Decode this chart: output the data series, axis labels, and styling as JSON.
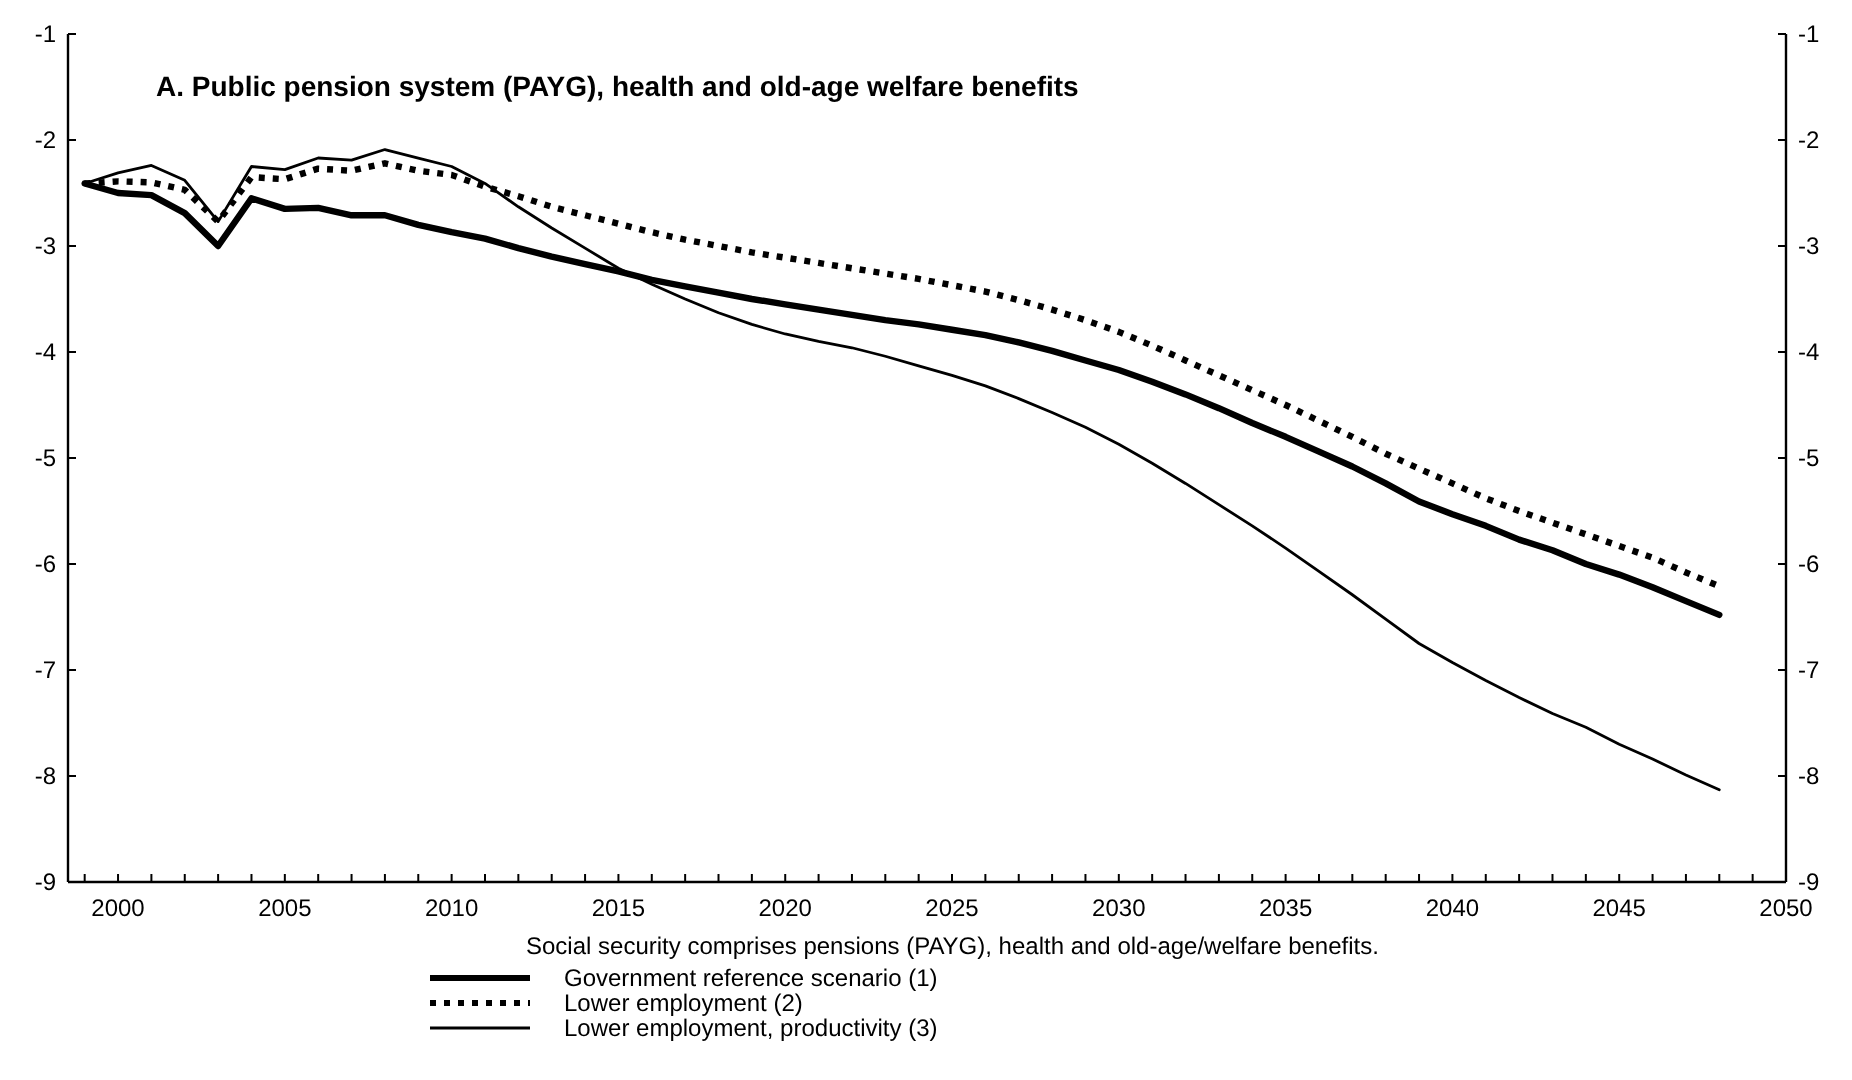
{
  "chart_data": {
    "type": "line",
    "title": "A. Public pension system (PAYG), health and old-age welfare benefits",
    "annotations": [
      "Social security comprises pensions (PAYG), health and old-age/welfare benefits."
    ],
    "x": [
      1999,
      2000,
      2001,
      2002,
      2003,
      2004,
      2005,
      2006,
      2007,
      2008,
      2009,
      2010,
      2011,
      2012,
      2013,
      2014,
      2015,
      2016,
      2017,
      2018,
      2019,
      2020,
      2021,
      2022,
      2023,
      2024,
      2025,
      2026,
      2027,
      2028,
      2029,
      2030,
      2031,
      2032,
      2033,
      2034,
      2035,
      2036,
      2037,
      2038,
      2039,
      2040,
      2041,
      2042,
      2043,
      2044,
      2045,
      2046,
      2047,
      2048
    ],
    "series": [
      {
        "name": "Government reference scenario (1)",
        "color": "#000000",
        "line_style": "solid",
        "values": [
          -2.41,
          -2.5,
          -2.52,
          -2.69,
          -3.0,
          -2.55,
          -2.65,
          -2.64,
          -2.71,
          -2.71,
          -2.8,
          -2.87,
          -2.93,
          -3.02,
          -3.1,
          -3.17,
          -3.24,
          -3.32,
          -3.38,
          -3.44,
          -3.5,
          -3.55,
          -3.6,
          -3.65,
          -3.7,
          -3.74,
          -3.79,
          -3.84,
          -3.91,
          -3.99,
          -4.08,
          -4.17,
          -4.28,
          -4.4,
          -4.53,
          -4.67,
          -4.8,
          -4.94,
          -5.08,
          -5.24,
          -5.41,
          -5.53,
          -5.64,
          -5.77,
          -5.87,
          -6.0,
          -6.1,
          -6.22,
          -6.35,
          -6.48
        ]
      },
      {
        "name": "Lower employment (2)",
        "color": "#000000",
        "line_style": "dotted",
        "values": [
          -2.41,
          -2.39,
          -2.4,
          -2.47,
          -2.77,
          -2.35,
          -2.37,
          -2.27,
          -2.29,
          -2.22,
          -2.29,
          -2.33,
          -2.44,
          -2.53,
          -2.63,
          -2.71,
          -2.79,
          -2.87,
          -2.94,
          -3.0,
          -3.06,
          -3.11,
          -3.16,
          -3.21,
          -3.26,
          -3.31,
          -3.37,
          -3.43,
          -3.51,
          -3.6,
          -3.7,
          -3.81,
          -3.94,
          -4.08,
          -4.22,
          -4.36,
          -4.5,
          -4.65,
          -4.8,
          -4.96,
          -5.1,
          -5.24,
          -5.38,
          -5.5,
          -5.61,
          -5.72,
          -5.83,
          -5.94,
          -6.08,
          -6.21
        ]
      },
      {
        "name": "Lower employment, productivity (3)",
        "color": "#000000",
        "line_style": "solid",
        "values": [
          -2.41,
          -2.31,
          -2.24,
          -2.38,
          -2.77,
          -2.25,
          -2.28,
          -2.17,
          -2.19,
          -2.09,
          -2.17,
          -2.25,
          -2.41,
          -2.63,
          -2.83,
          -3.02,
          -3.21,
          -3.36,
          -3.5,
          -3.63,
          -3.74,
          -3.83,
          -3.9,
          -3.96,
          -4.04,
          -4.13,
          -4.22,
          -4.32,
          -4.44,
          -4.57,
          -4.71,
          -4.87,
          -5.05,
          -5.24,
          -5.44,
          -5.64,
          -5.85,
          -6.07,
          -6.29,
          -6.52,
          -6.75,
          -6.93,
          -7.1,
          -7.26,
          -7.41,
          -7.54,
          -7.7,
          -7.84,
          -7.99,
          -8.13
        ]
      }
    ],
    "xlim": [
      1998.5,
      2050
    ],
    "xticks": [
      {
        "value": 1999,
        "label": null
      },
      2000,
      {
        "value": 2001,
        "label": null
      },
      {
        "value": 2002,
        "label": null
      },
      {
        "value": 2003,
        "label": null
      },
      {
        "value": 2004,
        "label": null
      },
      2005,
      {
        "value": 2006,
        "label": null
      },
      {
        "value": 2007,
        "label": null
      },
      {
        "value": 2008,
        "label": null
      },
      {
        "value": 2009,
        "label": null
      },
      2010,
      {
        "value": 2011,
        "label": null
      },
      {
        "value": 2012,
        "label": null
      },
      {
        "value": 2013,
        "label": null
      },
      {
        "value": 2014,
        "label": null
      },
      2015,
      {
        "value": 2016,
        "label": null
      },
      {
        "value": 2017,
        "label": null
      },
      {
        "value": 2018,
        "label": null
      },
      {
        "value": 2019,
        "label": null
      },
      2020,
      {
        "value": 2021,
        "label": null
      },
      {
        "value": 2022,
        "label": null
      },
      {
        "value": 2023,
        "label": null
      },
      {
        "value": 2024,
        "label": null
      },
      2025,
      {
        "value": 2026,
        "label": null
      },
      {
        "value": 2027,
        "label": null
      },
      {
        "value": 2028,
        "label": null
      },
      {
        "value": 2029,
        "label": null
      },
      2030,
      {
        "value": 2031,
        "label": null
      },
      {
        "value": 2032,
        "label": null
      },
      {
        "value": 2033,
        "label": null
      },
      {
        "value": 2034,
        "label": null
      },
      2035,
      {
        "value": 2036,
        "label": null
      },
      {
        "value": 2037,
        "label": null
      },
      {
        "value": 2038,
        "label": null
      },
      {
        "value": 2039,
        "label": null
      },
      2040,
      {
        "value": 2041,
        "label": null
      },
      {
        "value": 2042,
        "label": null
      },
      {
        "value": 2043,
        "label": null
      },
      {
        "value": 2044,
        "label": null
      },
      2045,
      {
        "value": 2046,
        "label": null
      },
      {
        "value": 2047,
        "label": null
      },
      {
        "value": 2048,
        "label": null
      },
      {
        "value": 2049,
        "label": null
      },
      2050
    ],
    "ylim": [
      -9,
      -1
    ],
    "yticks": [
      -9,
      -8,
      -7,
      -6,
      -5,
      -4,
      -3,
      -2,
      -1
    ],
    "y2lim": [
      -9,
      -1
    ],
    "y2ticks": [
      -9,
      -8,
      -7,
      -6,
      -5,
      -4,
      -3,
      -2,
      -1
    ],
    "grid": false,
    "legend": "bottom",
    "marker": "none"
  }
}
